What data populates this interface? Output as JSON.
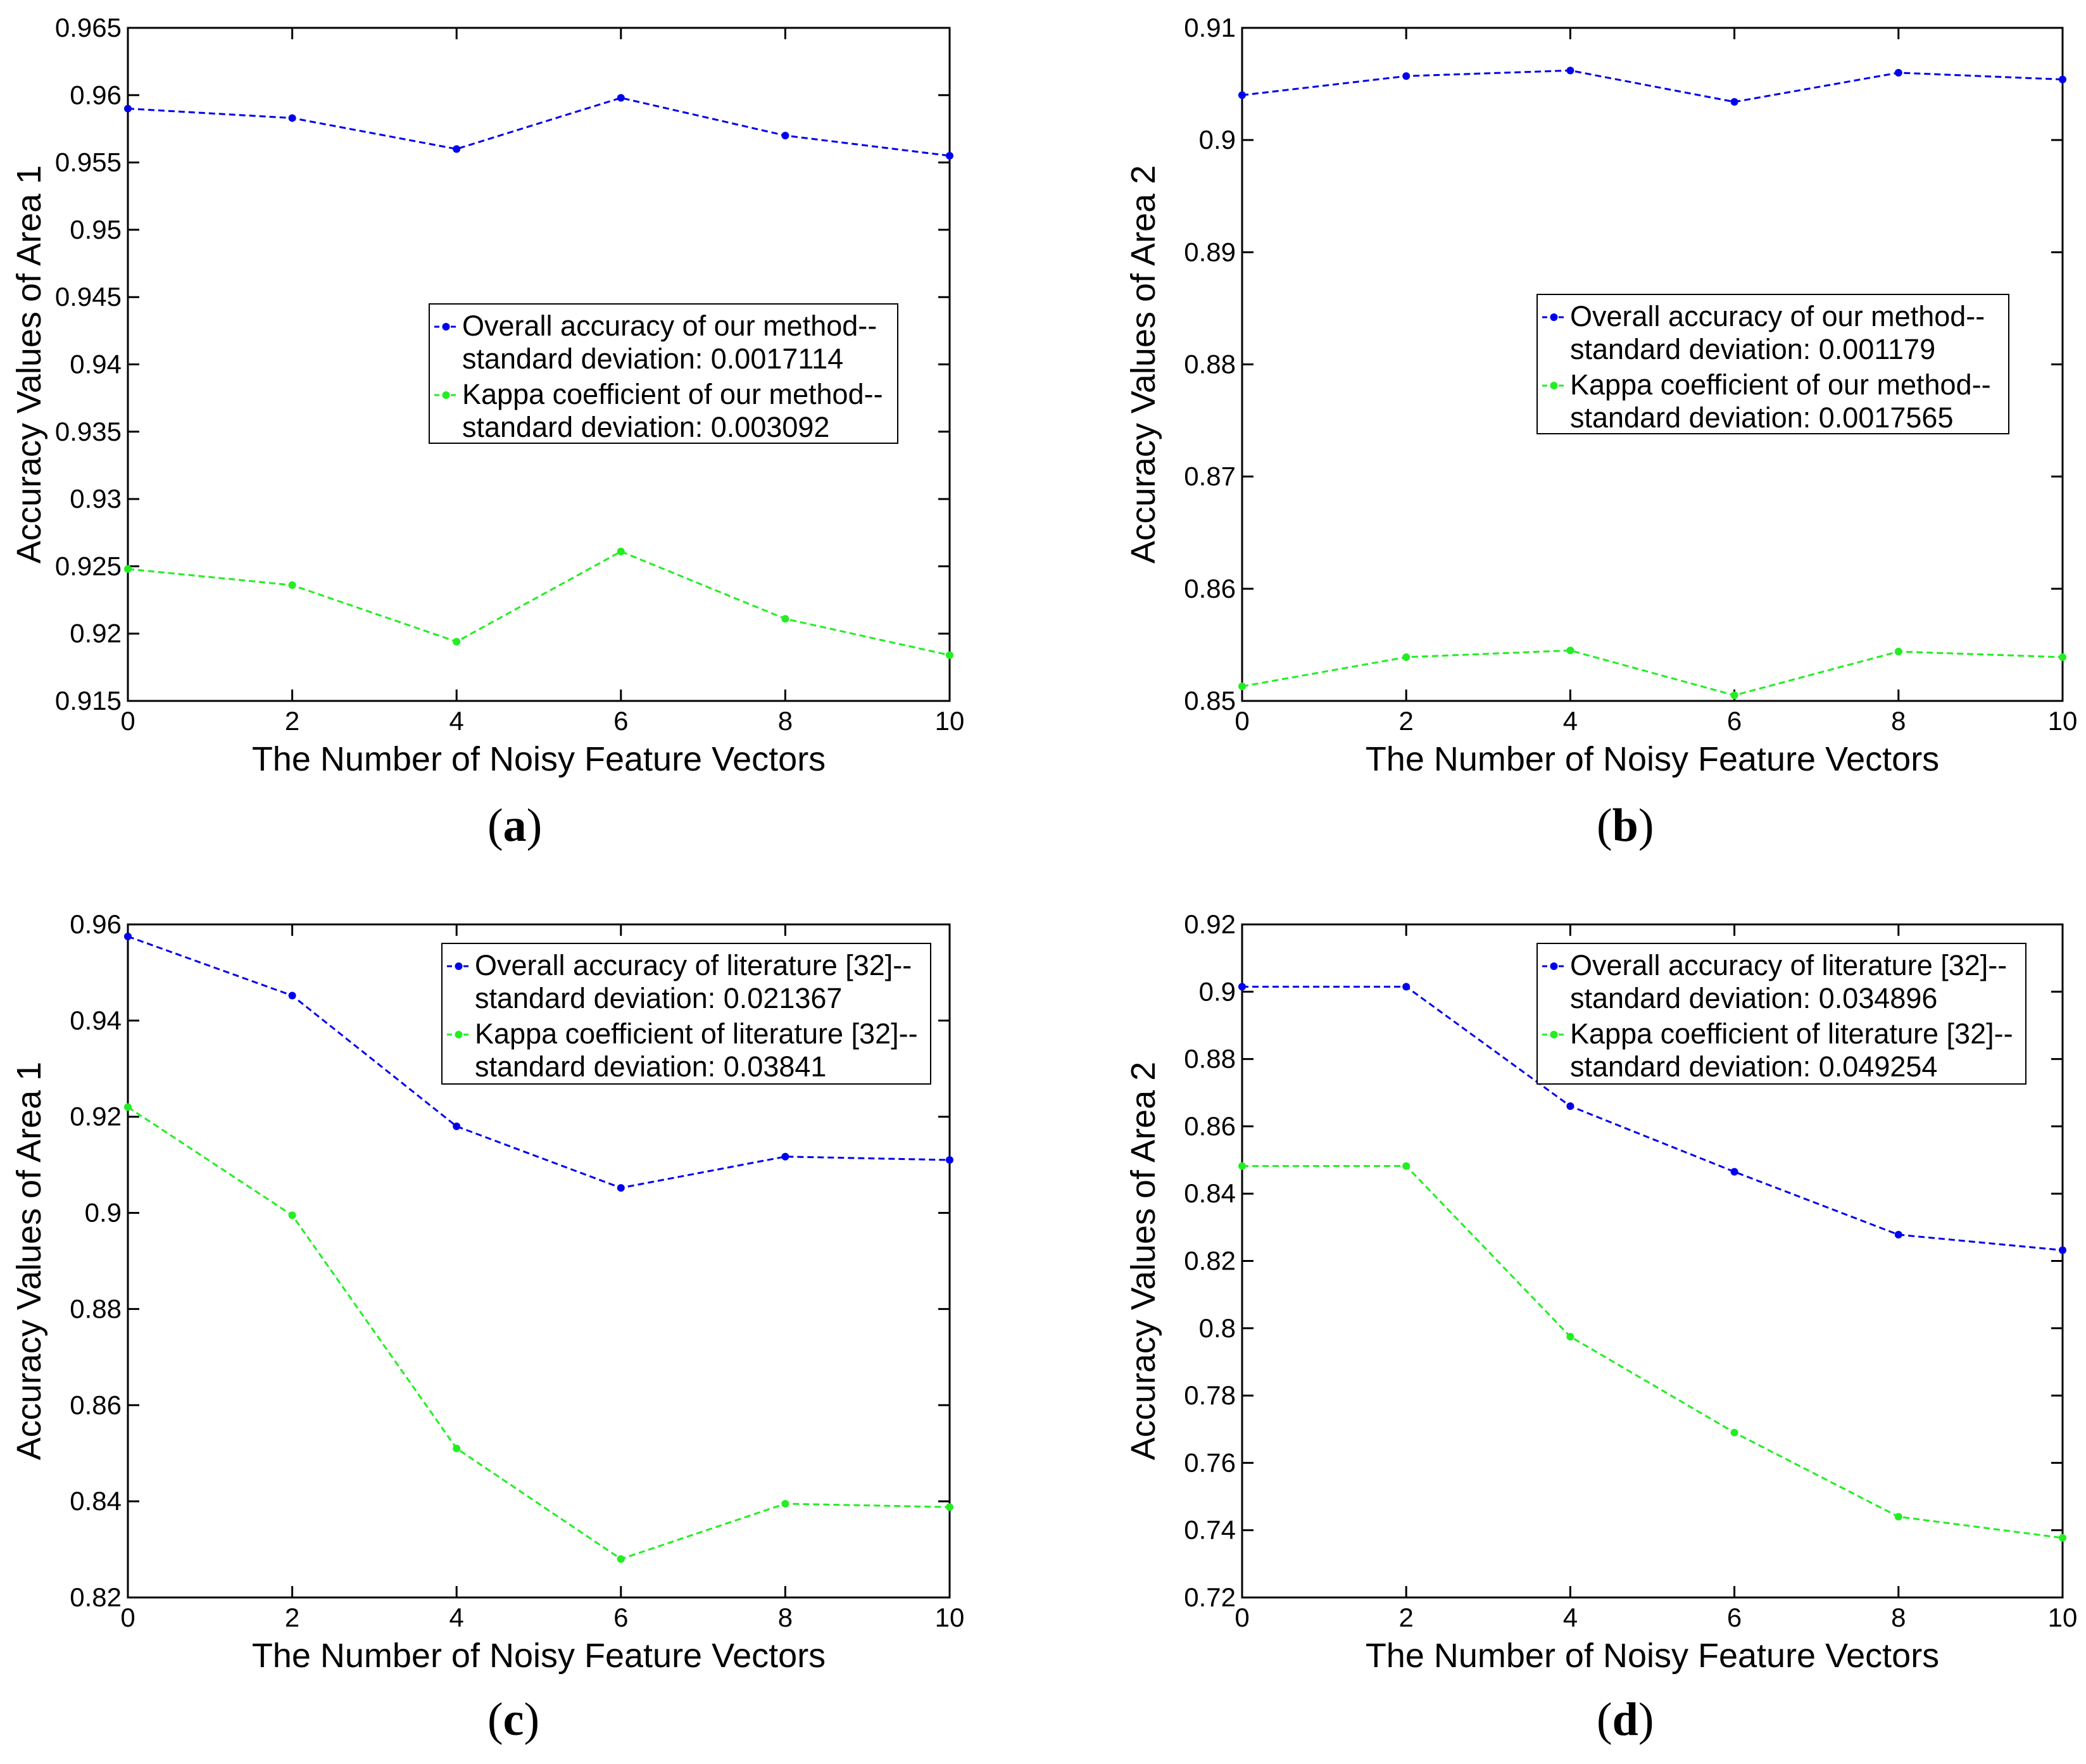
{
  "chart_data": [
    {
      "type": "line",
      "panel_label": "a",
      "xlabel": "The Number of Noisy Feature Vectors",
      "ylabel": "Accuracy Values of Area 1",
      "xlim": [
        0,
        10
      ],
      "ylim": [
        0.915,
        0.965
      ],
      "xticks": [
        "0",
        "2",
        "4",
        "6",
        "8",
        "10"
      ],
      "yticks": [
        "0.915",
        "0.92",
        "0.925",
        "0.93",
        "0.935",
        "0.94",
        "0.945",
        "0.95",
        "0.955",
        "0.96",
        "0.965"
      ],
      "x": [
        0,
        2,
        4,
        6,
        8,
        10
      ],
      "series": [
        {
          "name": "Overall accuracy of our method--",
          "name2": "standard deviation: 0.0017114",
          "color": "#0000ee",
          "values": [
            0.959,
            0.9583,
            0.956,
            0.9598,
            0.957,
            0.9555
          ]
        },
        {
          "name": "Kappa coefficient of our method--",
          "name2": "standard deviation: 0.003092",
          "color": "#22ee22",
          "values": [
            0.9248,
            0.9236,
            0.9194,
            0.9261,
            0.9211,
            0.9184
          ]
        }
      ],
      "legend_position": "center-right"
    },
    {
      "type": "line",
      "panel_label": "b",
      "xlabel": "The Number of Noisy Feature Vectors",
      "ylabel": "Accuracy Values of Area 2",
      "xlim": [
        0,
        10
      ],
      "ylim": [
        0.85,
        0.91
      ],
      "xticks": [
        "0",
        "2",
        "4",
        "6",
        "8",
        "10"
      ],
      "yticks": [
        "0.85",
        "0.86",
        "0.87",
        "0.88",
        "0.89",
        "0.9",
        "0.91"
      ],
      "x": [
        0,
        2,
        4,
        6,
        8,
        10
      ],
      "series": [
        {
          "name": "Overall accuracy of our method--",
          "name2": "standard deviation: 0.001179",
          "color": "#0000ee",
          "values": [
            0.904,
            0.9057,
            0.9062,
            0.9034,
            0.906,
            0.9054
          ]
        },
        {
          "name": "Kappa coefficient of our method--",
          "name2": "standard deviation: 0.0017565",
          "color": "#22ee22",
          "values": [
            0.8513,
            0.8539,
            0.8545,
            0.8505,
            0.8544,
            0.8539
          ]
        }
      ],
      "legend_position": "center-right"
    },
    {
      "type": "line",
      "panel_label": "c",
      "xlabel": "The Number of Noisy Feature Vectors",
      "ylabel": "Accuracy Values of Area 1",
      "xlim": [
        0,
        10
      ],
      "ylim": [
        0.82,
        0.96
      ],
      "xticks": [
        "0",
        "2",
        "4",
        "6",
        "8",
        "10"
      ],
      "yticks": [
        "0.82",
        "0.84",
        "0.86",
        "0.88",
        "0.9",
        "0.92",
        "0.94",
        "0.96"
      ],
      "x": [
        0,
        2,
        4,
        6,
        8,
        10
      ],
      "series": [
        {
          "name": "Overall accuracy of literature [32]--",
          "name2": "standard deviation: 0.021367",
          "color": "#0000ee",
          "values": [
            0.9575,
            0.9452,
            0.918,
            0.9052,
            0.9117,
            0.911
          ]
        },
        {
          "name": "Kappa coefficient of literature [32]--",
          "name2": "standard deviation: 0.03841",
          "color": "#22ee22",
          "values": [
            0.922,
            0.8995,
            0.851,
            0.828,
            0.8395,
            0.8388
          ]
        }
      ],
      "legend_position": "top-right"
    },
    {
      "type": "line",
      "panel_label": "d",
      "xlabel": "The Number of Noisy Feature Vectors",
      "ylabel": "Accuracy Values of Area 2",
      "xlim": [
        0,
        10
      ],
      "ylim": [
        0.72,
        0.92
      ],
      "xticks": [
        "0",
        "2",
        "4",
        "6",
        "8",
        "10"
      ],
      "yticks": [
        "0.72",
        "0.74",
        "0.76",
        "0.78",
        "0.8",
        "0.82",
        "0.84",
        "0.86",
        "0.88",
        "0.9",
        "0.92"
      ],
      "x": [
        0,
        2,
        4,
        6,
        8,
        10
      ],
      "series": [
        {
          "name": "Overall accuracy of literature [32]--",
          "name2": "standard deviation: 0.034896",
          "color": "#0000ee",
          "values": [
            0.9015,
            0.9015,
            0.866,
            0.8465,
            0.8278,
            0.8232
          ]
        },
        {
          "name": "Kappa coefficient of literature [32]--",
          "name2": "standard deviation: 0.049254",
          "color": "#22ee22",
          "values": [
            0.8482,
            0.8482,
            0.7975,
            0.769,
            0.744,
            0.7377
          ]
        }
      ],
      "legend_position": "top-right"
    }
  ]
}
